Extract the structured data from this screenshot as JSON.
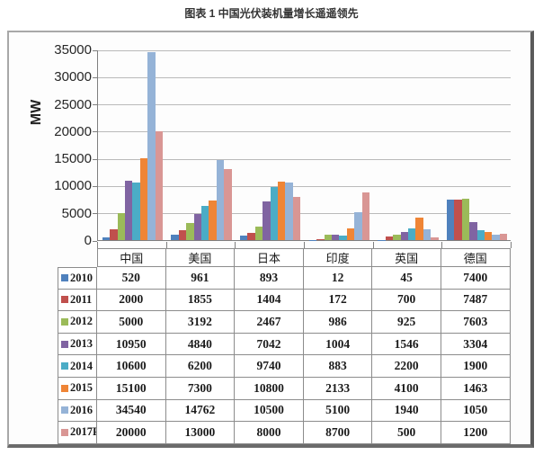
{
  "page_title": "图表 1 中国光伏装机量增长遥遥领先",
  "chart_data": {
    "type": "bar",
    "title": "图表 1 中国光伏装机量增长遥遥领先",
    "ylabel": "MW",
    "xlabel": "",
    "ylim": [
      0,
      35000
    ],
    "ytick_interval": 5000,
    "yticks": [
      35000,
      30000,
      25000,
      20000,
      15000,
      10000,
      5000,
      0
    ],
    "grid": true,
    "legend_position": "data-table-left",
    "categories": [
      "中国",
      "美国",
      "日本",
      "印度",
      "英国",
      "德国"
    ],
    "series": [
      {
        "name": "2010",
        "color": "#4f81bd",
        "values": [
          520,
          961,
          893,
          12,
          45,
          7400
        ]
      },
      {
        "name": "2011",
        "color": "#c0504d",
        "values": [
          2000,
          1855,
          1404,
          172,
          700,
          7487
        ]
      },
      {
        "name": "2012",
        "color": "#9bbb59",
        "values": [
          5000,
          3192,
          2467,
          986,
          925,
          7603
        ]
      },
      {
        "name": "2013",
        "color": "#8064a2",
        "values": [
          10950,
          4840,
          7042,
          1004,
          1546,
          3304
        ]
      },
      {
        "name": "2014",
        "color": "#4bacc6",
        "values": [
          10600,
          6200,
          9740,
          883,
          2200,
          1900
        ]
      },
      {
        "name": "2015",
        "color": "#ef8536",
        "values": [
          15100,
          7300,
          10800,
          2133,
          4100,
          1463
        ]
      },
      {
        "name": "2016",
        "color": "#95b3d7",
        "values": [
          34540,
          14762,
          10500,
          5100,
          1940,
          1050
        ]
      },
      {
        "name": "2017F",
        "color": "#d99694",
        "values": [
          20000,
          13000,
          8000,
          8700,
          500,
          1200
        ]
      }
    ]
  },
  "colors": {
    "gridline": "#bababa",
    "axis": "#7f7f7f",
    "table_border": "#8c8c8c",
    "panel_shadow": "#5a5a5a"
  }
}
